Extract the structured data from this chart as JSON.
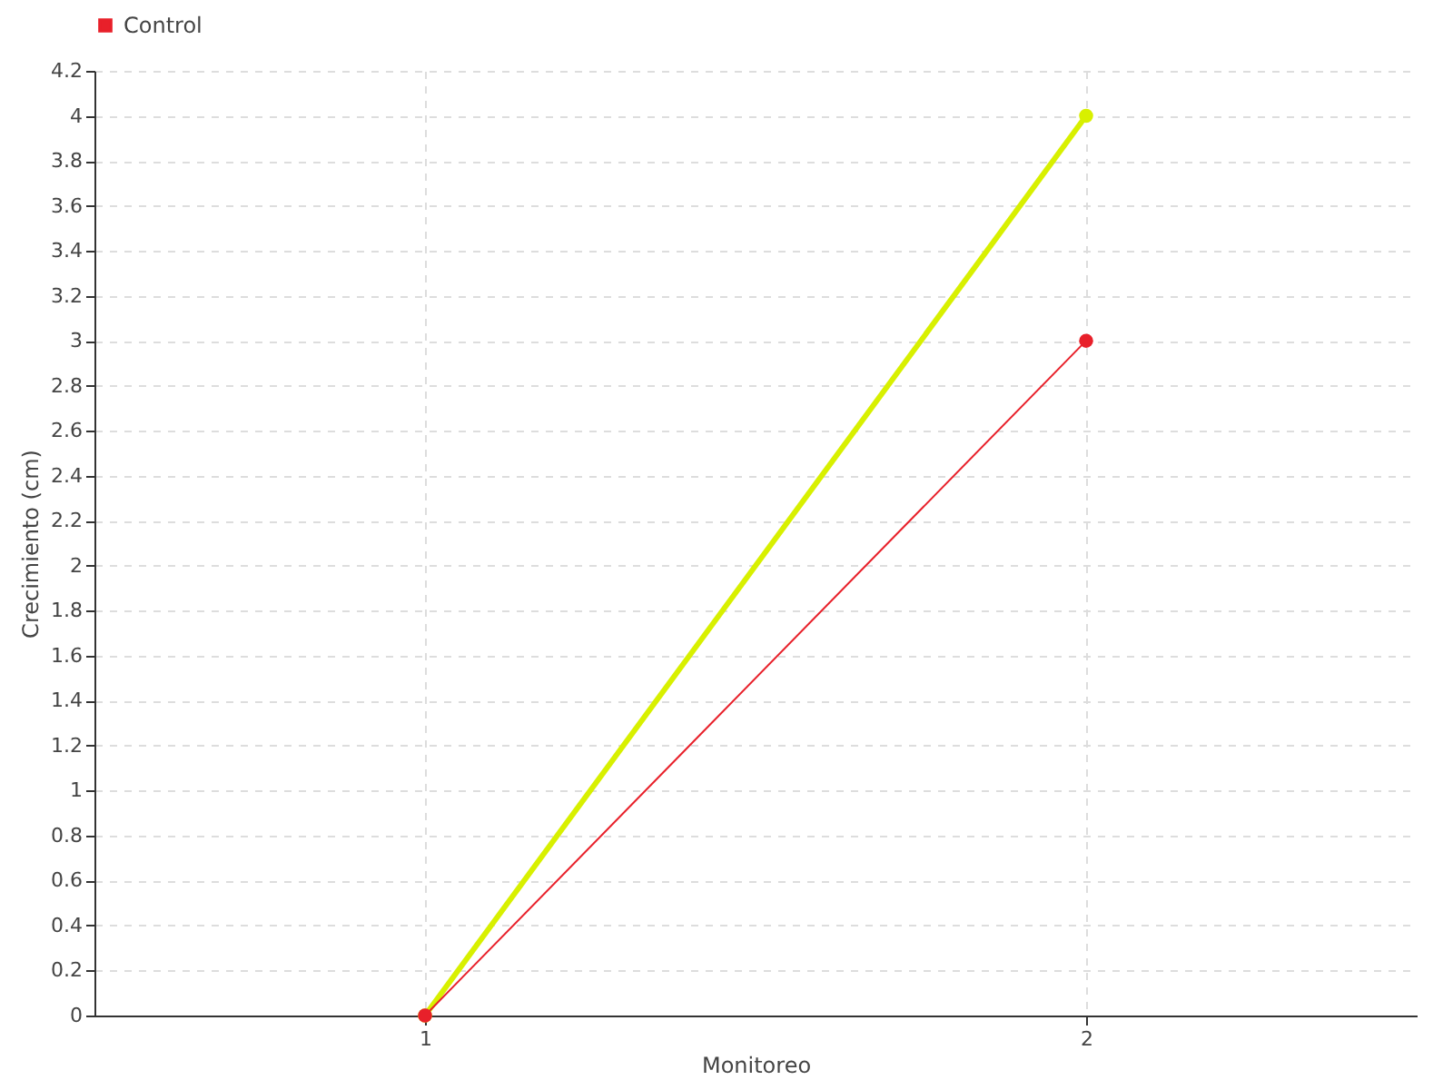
{
  "chart_data": {
    "type": "line",
    "xlabel": "Monitoreo",
    "ylabel": "Crecimiento (cm)",
    "x": [
      1,
      2
    ],
    "xlim": [
      0.5,
      2.5
    ],
    "xticks": [
      1,
      2
    ],
    "ylim": [
      0,
      4.2
    ],
    "yticks": [
      0,
      0.2,
      0.4,
      0.6,
      0.8,
      1,
      1.2,
      1.4,
      1.6,
      1.8,
      2,
      2.2,
      2.4,
      2.6,
      2.8,
      3,
      3.2,
      3.4,
      3.6,
      3.8,
      4,
      4.2
    ],
    "grid": true,
    "legend": "top left",
    "marker": "circle",
    "series": [
      {
        "color": "#d8f000",
        "values": [
          0,
          4
        ]
      },
      {
        "name": "Control",
        "color": "#e8202a",
        "values": [
          0,
          3
        ]
      }
    ]
  }
}
